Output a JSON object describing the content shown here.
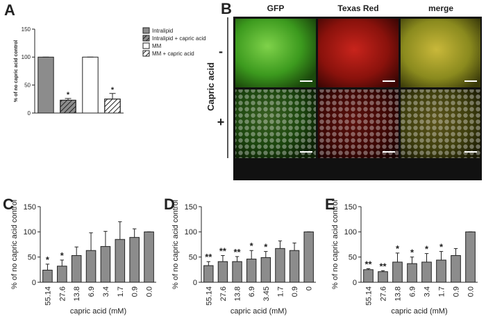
{
  "chart_data": [
    {
      "type": "bar",
      "panel_label": "A",
      "ylabel": "% of no capric acid control",
      "ylim": [
        0,
        150
      ],
      "yticks": [
        0,
        50,
        100,
        150
      ],
      "series": [
        {
          "name": "Intralipid",
          "color": "#8c8c8c",
          "hatch": false,
          "values": [
            100
          ],
          "errors": [
            0
          ],
          "stars": [
            null
          ]
        },
        {
          "name": "Intralipid + capric acid",
          "color": "#8c8c8c",
          "hatch": true,
          "values": [
            23
          ],
          "errors": [
            3
          ],
          "stars": [
            "*"
          ]
        },
        {
          "name": "MM",
          "color": "#ffffff",
          "hatch": false,
          "values": [
            100
          ],
          "errors": [
            0
          ],
          "stars": [
            null
          ]
        },
        {
          "name": "MM + capric acid",
          "color": "#ffffff",
          "hatch": true,
          "values": [
            25
          ],
          "errors": [
            10
          ],
          "stars": [
            "*"
          ]
        }
      ]
    },
    {
      "type": "bar",
      "panel_label": "C",
      "ylabel": "% of no capric acid control",
      "xlabel": "capric acid (mM)",
      "ylim": [
        0,
        150
      ],
      "yticks": [
        0,
        50,
        100,
        150
      ],
      "color": "#8c8c8c",
      "categories": [
        "55.14",
        "27.6",
        "13.8",
        "6.9",
        "3.4",
        "1.7",
        "0.9",
        "0.0"
      ],
      "values": [
        24,
        32,
        53,
        63,
        71,
        85,
        89,
        100
      ],
      "errors": [
        12,
        12,
        17,
        35,
        30,
        35,
        17,
        0
      ],
      "stars": [
        "*",
        "*",
        null,
        null,
        null,
        null,
        null,
        null
      ]
    },
    {
      "type": "bar",
      "panel_label": "D",
      "ylabel": "% of no capric acid control",
      "xlabel": "capric acid (mM)",
      "ylim": [
        0,
        150
      ],
      "yticks": [
        0,
        50,
        100,
        150
      ],
      "color": "#8c8c8c",
      "categories": [
        "55.14",
        "27.6",
        "13.8",
        "6.9",
        "3.45",
        "1.7",
        "0.9",
        "0"
      ],
      "values": [
        33,
        41,
        41,
        46,
        49,
        67,
        63,
        100
      ],
      "errors": [
        8,
        12,
        10,
        17,
        12,
        15,
        15,
        0
      ],
      "stars": [
        "**",
        "**",
        "**",
        "*",
        "*",
        null,
        null,
        null
      ]
    },
    {
      "type": "bar",
      "panel_label": "E",
      "ylabel": "% of no capric acid control",
      "xlabel": "capric acid (mM)",
      "ylim": [
        0,
        150
      ],
      "yticks": [
        0,
        50,
        100,
        150
      ],
      "color": "#8c8c8c",
      "categories": [
        "55.14",
        "27.6",
        "13.8",
        "6.9",
        "3.4",
        "1.7",
        "0.9",
        "0.0"
      ],
      "values": [
        25,
        21,
        40,
        37,
        40,
        44,
        53,
        100
      ],
      "errors": [
        2,
        2,
        18,
        13,
        17,
        17,
        14,
        0
      ],
      "stars": [
        "**",
        "**",
        "*",
        "*",
        "*",
        "*",
        null,
        null
      ]
    }
  ],
  "image_panel": {
    "panel_label": "B",
    "columns": [
      "GFP",
      "Texas Red",
      "merge"
    ],
    "row_title": "Capric acid",
    "rows": [
      "-",
      "+"
    ]
  }
}
